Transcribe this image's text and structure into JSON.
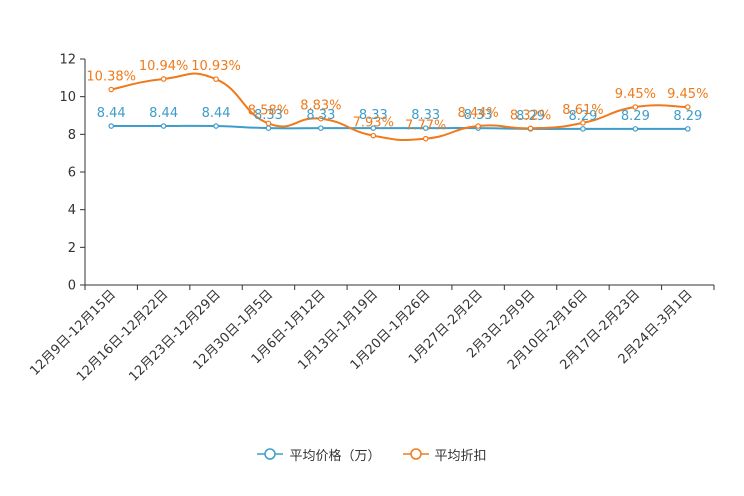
{
  "chart_data": {
    "type": "line",
    "categories": [
      "12月9日-12月15日",
      "12月16日-12月22日",
      "12月23日-12月29日",
      "12月30日-1月5日",
      "1月6日-1月12日",
      "1月13日-1月19日",
      "1月20日-1月26日",
      "1月27日-2月2日",
      "2月3日-2月9日",
      "2月10日-2月16日",
      "2月17日-2月23日",
      "2月24日-3月1日"
    ],
    "ylim": [
      0,
      12
    ],
    "yticks": [
      0,
      2,
      4,
      6,
      8,
      10,
      12
    ],
    "series": [
      {
        "name": "平均价格（万）",
        "color": "#3d9dcb",
        "values": [
          8.44,
          8.44,
          8.44,
          8.33,
          8.33,
          8.33,
          8.33,
          8.33,
          8.29,
          8.29,
          8.29,
          8.29
        ],
        "labels": [
          "8.44",
          "8.44",
          "8.44",
          "8.33",
          "8.33",
          "8.33",
          "8.33",
          "8.33",
          "8.29",
          "8.29",
          "8.29",
          "8.29"
        ]
      },
      {
        "name": "平均折扣",
        "color": "#f07a1b",
        "values": [
          10.38,
          10.94,
          10.93,
          8.58,
          8.83,
          7.93,
          7.77,
          8.44,
          8.32,
          8.61,
          9.45,
          9.45
        ],
        "labels": [
          "10.38%",
          "10.94%",
          "10.93%",
          "8.58%",
          "8.83%",
          "7.93%",
          "7.77%",
          "8.44%",
          "8.32%",
          "8.61%",
          "9.45%",
          "9.45%"
        ]
      }
    ]
  }
}
